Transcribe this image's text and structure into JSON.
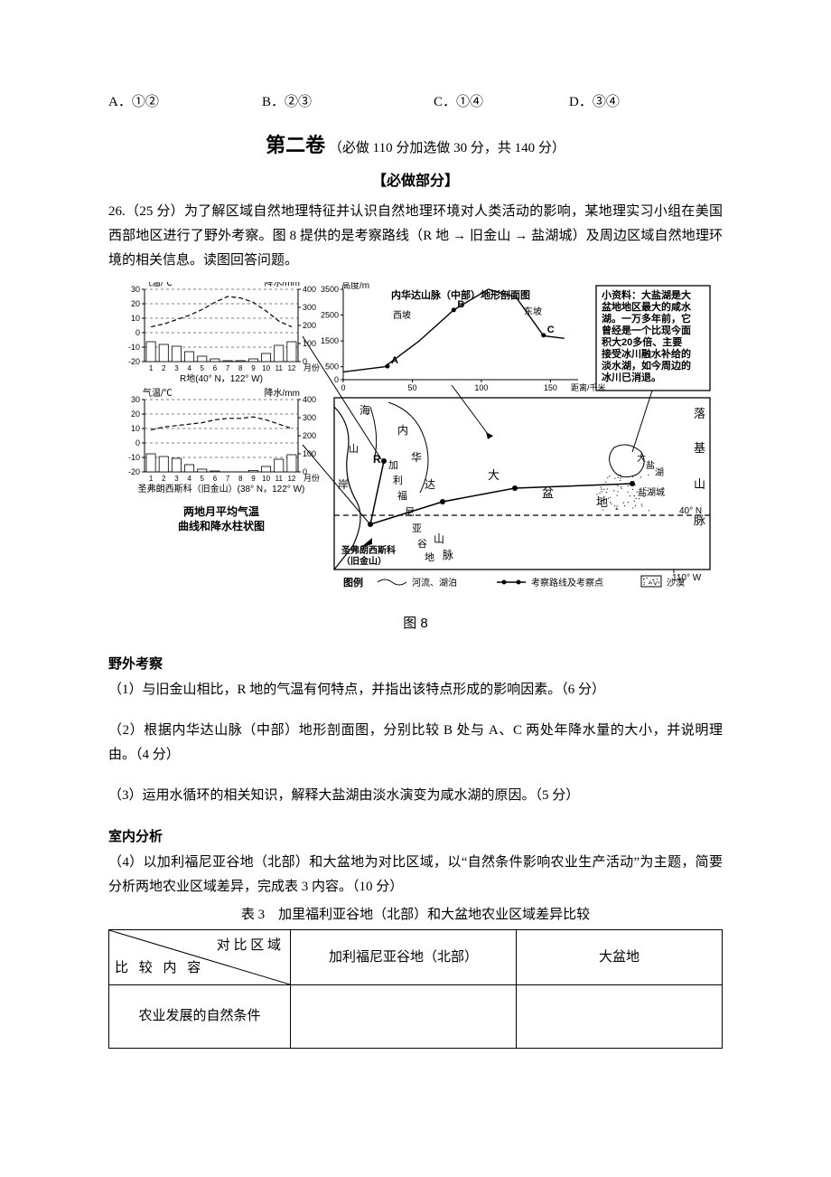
{
  "options": {
    "A": "A．①②",
    "B": "B．②③",
    "C": "C．①④",
    "D": "D．③④"
  },
  "section2": {
    "title_big": "第二卷",
    "title_paren": "（必做 110 分加选做 30 分，共 140 分）",
    "subsection": "【必做部分】"
  },
  "q26": {
    "stem": "26.（25 分）为了解区域自然地理特征并认识自然地理环境对人类活动的影响，某地理实习小组在美国西部地区进行了野外考察。图 8 提供的是考察路线（R 地 → 旧金山 → 盐湖城）及周边区域自然地理环境的相关信息。读图回答问题。"
  },
  "figure": {
    "caption": "图 8",
    "climate": {
      "temp_axis": "气温/℃",
      "precip_axis": "降水/mm",
      "month_label": "月份",
      "r_label": "R地(40° N，122° W)",
      "sf_label": "圣弗朗西斯科（旧金山）(38° N，122° W)",
      "combo_title1": "两地月平均气温",
      "combo_title2": "曲线和降水柱状图",
      "temp_ticks": [
        -20,
        -10,
        0,
        10,
        20,
        30
      ],
      "precip_ticks": [
        0,
        100,
        200,
        300,
        400
      ],
      "months": [
        1,
        2,
        3,
        4,
        5,
        6,
        7,
        8,
        9,
        10,
        11,
        12
      ],
      "r_temp": [
        4,
        6,
        9,
        12,
        16,
        21,
        25,
        24,
        21,
        15,
        8,
        4
      ],
      "r_precip": [
        110,
        95,
        85,
        55,
        30,
        15,
        5,
        5,
        15,
        45,
        90,
        110
      ],
      "sf_temp": [
        9,
        11,
        12,
        13,
        14,
        16,
        17,
        17,
        18,
        16,
        13,
        10
      ],
      "sf_precip": [
        100,
        85,
        75,
        40,
        15,
        5,
        0,
        0,
        8,
        30,
        70,
        95
      ]
    },
    "profile": {
      "y_axis": "高度/m",
      "title": "内华达山脉（中部）地形剖面图",
      "west": "西坡",
      "east": "东坡",
      "x_axis_label": "距离/千米",
      "x_ticks": [
        0,
        50,
        100,
        150
      ],
      "y_ticks": [
        0,
        500,
        1500,
        2500,
        3500
      ],
      "pts": {
        "A": "A",
        "B": "B",
        "C": "C"
      }
    },
    "info_box": {
      "title": "小资料：",
      "body": "大盐湖是大盆地地区最大的咸水湖。一万多年前，它曾经是一个比现今面积大20多倍、主要接受冰川融水补给的淡水湖，如今周边的冰川已消退。"
    },
    "map": {
      "labels": {
        "sea": "海",
        "hai_an": "岸",
        "nei": "内",
        "hua": "华",
        "da": "达",
        "jia": "加",
        "li": "利",
        "fu": "福",
        "ni": "尼",
        "ya": "亚",
        "gu": "谷",
        "di": "地",
        "shan": "山",
        "mai": "脉",
        "da2": "大",
        "pen": "盆",
        "di2": "地",
        "R": "R",
        "sf_city": "圣弗朗西斯科\n（旧金山）",
        "salt_lake": "大盐湖",
        "salt_city": "盐湖城",
        "luo": "落",
        "ji": "基",
        "shan2": "山",
        "mai2": "脉",
        "lat": "40° N",
        "lon": "110° W"
      },
      "legend": {
        "title": "图例",
        "river": "河流、湖泊",
        "route": "考察路线及考察点",
        "desert": "沙漠"
      }
    }
  },
  "field": {
    "heading": "野外考察",
    "q1": "（1）与旧金山相比，R 地的气温有何特点，并指出该特点形成的影响因素。（6 分）",
    "q2": "（2）根据内华达山脉（中部）地形剖面图，分别比较 B 处与 A、C 两处年降水量的大小，并说明理由。（4 分）",
    "q3": "（3）运用水循环的相关知识，解释大盐湖由淡水演变为咸水湖的原因。（5 分）"
  },
  "indoor": {
    "heading": "室内分析",
    "q4": "（4）以加利福尼亚谷地（北部）和大盆地为对比区域，以“自然条件影响农业生产活动”为主题，简要分析两地农业区域差异，完成表 3 内容。（10 分）",
    "table_caption": "表 3　加里福利亚谷地（北部）和大盆地农业区域差异比较",
    "diag_top": "对 比 区 域",
    "diag_bottom": "比 较 内 容",
    "col1": "加利福尼亚谷地（北部）",
    "col2": "大盆地",
    "row1": "农业发展的自然条件"
  },
  "colors": {
    "line": "#000000",
    "dash": "#000000",
    "bar_fill": "#ffffff",
    "bg": "#ffffff"
  }
}
